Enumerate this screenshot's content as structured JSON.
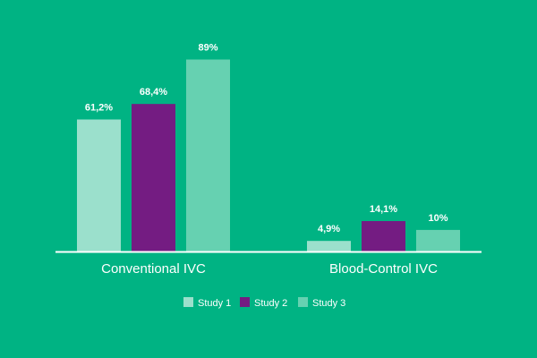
{
  "colors": {
    "background": "#00B383",
    "axis": "#ffffff",
    "text": "#ffffff"
  },
  "chart_data": {
    "type": "bar",
    "categories": [
      "Conventional IVC",
      "Blood-Control IVC"
    ],
    "series": [
      {
        "name": "Study 1",
        "values": [
          61.2,
          4.9
        ],
        "labels": [
          "61,2%",
          "4,9%"
        ],
        "color": "#9BE0CC"
      },
      {
        "name": "Study 2",
        "values": [
          68.4,
          14.1
        ],
        "labels": [
          "68,4%",
          "14,1%"
        ],
        "color": "#741C82"
      },
      {
        "name": "Study 3",
        "values": [
          89,
          10
        ],
        "labels": [
          "89%",
          "10%"
        ],
        "color": "#66D1B1"
      }
    ],
    "ylim": [
      0,
      100
    ],
    "grid": false,
    "legend": "bottom-center",
    "title": "",
    "xlabel": "",
    "ylabel": ""
  }
}
